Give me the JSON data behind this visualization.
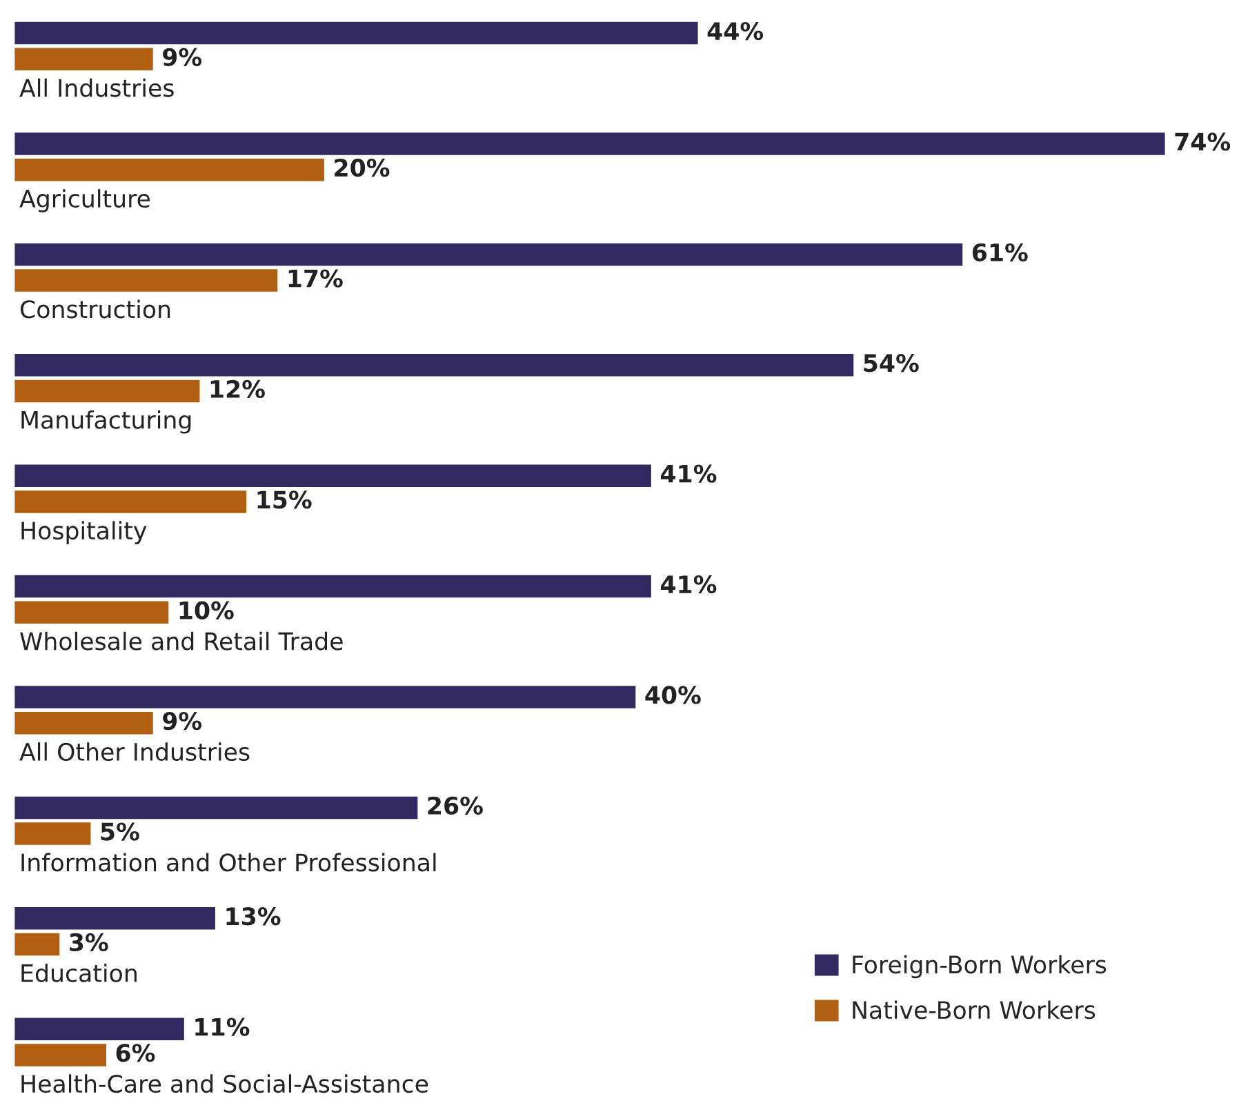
{
  "chart_data": {
    "type": "bar",
    "orientation": "horizontal",
    "categories": [
      "All Industries",
      "Agriculture",
      "Construction",
      "Manufacturing",
      "Hospitality",
      "Wholesale and Retail Trade",
      "All Other Industries",
      "Information and Other Professional",
      "Education",
      "Health-Care and Social-Assistance"
    ],
    "series": [
      {
        "name": "Foreign-Born Workers",
        "color": "#332a61",
        "values": [
          44,
          74,
          61,
          54,
          41,
          41,
          40,
          26,
          13,
          11
        ],
        "value_labels": [
          "44%",
          "74%",
          "61%",
          "54%",
          "41%",
          "41%",
          "40%",
          "26%",
          "13%",
          "11%"
        ]
      },
      {
        "name": "Native-Born Workers",
        "color": "#b35f12",
        "values": [
          9,
          20,
          17,
          12,
          15,
          10,
          9,
          5,
          3,
          6
        ],
        "value_labels": [
          "9%",
          "20%",
          "17%",
          "12%",
          "15%",
          "10%",
          "9%",
          "5%",
          "3%",
          "6%"
        ]
      }
    ],
    "legend": "bottom right"
  }
}
